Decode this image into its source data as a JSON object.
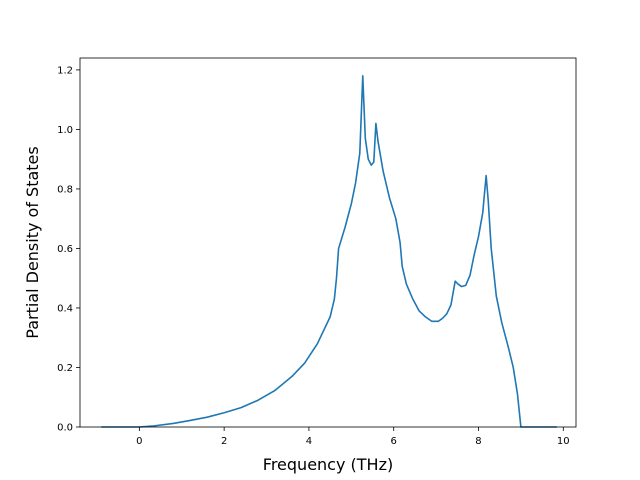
{
  "chart_data": {
    "type": "line",
    "title": "",
    "xlabel": "Frequency (THz)",
    "ylabel": "Partial Density of States",
    "xlim": [
      -1.4,
      10.3
    ],
    "ylim": [
      0.0,
      1.24
    ],
    "xticks": [
      0,
      2,
      4,
      6,
      8,
      10
    ],
    "xtick_labels": [
      "0",
      "2",
      "4",
      "6",
      "8",
      "10"
    ],
    "yticks": [
      0.0,
      0.2,
      0.4,
      0.6,
      0.8,
      1.0,
      1.2
    ],
    "ytick_labels": [
      "0.0",
      "0.2",
      "0.4",
      "0.6",
      "0.8",
      "1.0",
      "1.2"
    ],
    "grid": false,
    "series": [
      {
        "color": "#1f77b4",
        "x": [
          -0.9,
          0.0,
          0.3,
          0.8,
          1.2,
          1.6,
          2.0,
          2.4,
          2.8,
          3.2,
          3.6,
          3.9,
          4.2,
          4.5,
          4.6,
          4.65,
          4.7,
          4.85,
          5.0,
          5.1,
          5.2,
          5.27,
          5.33,
          5.4,
          5.47,
          5.53,
          5.58,
          5.63,
          5.75,
          5.9,
          6.05,
          6.15,
          6.2,
          6.3,
          6.45,
          6.6,
          6.75,
          6.9,
          7.05,
          7.15,
          7.25,
          7.35,
          7.45,
          7.52,
          7.6,
          7.7,
          7.8,
          7.9,
          8.0,
          8.1,
          8.18,
          8.23,
          8.3,
          8.42,
          8.55,
          8.7,
          8.82,
          8.92,
          9.0,
          9.5,
          9.85
        ],
        "y": [
          0.0,
          0.0,
          0.003,
          0.012,
          0.022,
          0.033,
          0.048,
          0.065,
          0.09,
          0.123,
          0.17,
          0.215,
          0.28,
          0.37,
          0.43,
          0.5,
          0.6,
          0.67,
          0.75,
          0.82,
          0.92,
          1.18,
          0.97,
          0.9,
          0.88,
          0.89,
          1.02,
          0.96,
          0.86,
          0.77,
          0.7,
          0.62,
          0.54,
          0.48,
          0.43,
          0.39,
          0.37,
          0.355,
          0.355,
          0.365,
          0.38,
          0.41,
          0.49,
          0.48,
          0.472,
          0.476,
          0.51,
          0.58,
          0.64,
          0.72,
          0.845,
          0.76,
          0.6,
          0.44,
          0.35,
          0.27,
          0.2,
          0.11,
          0.0,
          0.0,
          0.0
        ]
      }
    ]
  }
}
